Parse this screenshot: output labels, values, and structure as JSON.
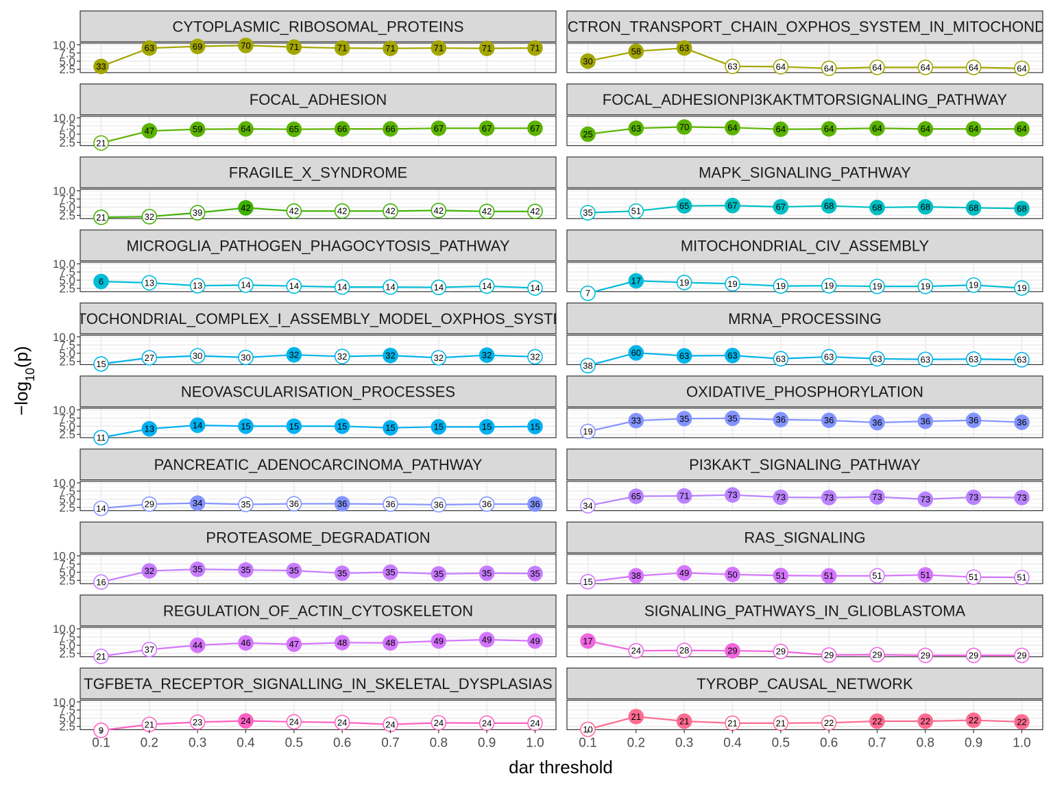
{
  "chart_data": {
    "type": "line",
    "xlabel": "dar threshold",
    "ylabel": "−log10(p)",
    "ylim": [
      1.5,
      10.5
    ],
    "yticks": [
      2.5,
      5.0,
      7.5,
      10.0
    ],
    "ytick_labels": [
      "2.5",
      "5.0",
      "7.5",
      "10.0"
    ],
    "x": [
      0.1,
      0.2,
      0.3,
      0.4,
      0.5,
      0.6,
      0.7,
      0.8,
      0.9,
      1.0
    ],
    "x_tick_labels": [
      "0.1",
      "0.2",
      "0.3",
      "0.4",
      "0.5",
      "0.6",
      "0.7",
      "0.8",
      "0.9",
      "1.0"
    ],
    "grid": true,
    "filled_meaning": "filled markers = significant; hollow = not significant",
    "panels": [
      {
        "title": "CYTOPLASMIC_RIBOSOMAL_PROTEINS",
        "color": "#A3A500",
        "y": [
          3.4,
          9.0,
          9.5,
          9.8,
          9.3,
          9.0,
          8.9,
          9.0,
          8.9,
          9.0
        ],
        "counts": [
          33,
          63,
          69,
          70,
          71,
          71,
          71,
          71,
          71,
          71
        ],
        "filled": [
          true,
          true,
          true,
          true,
          true,
          true,
          true,
          true,
          true,
          true
        ]
      },
      {
        "title": "ELECTRON_TRANSPORT_CHAIN_OXPHOS_SYSTEM_IN_MITOCHONDRIA",
        "color": "#A3A500",
        "y": [
          5.0,
          8.0,
          9.0,
          3.4,
          3.3,
          2.8,
          3.1,
          3.1,
          3.1,
          2.8
        ],
        "counts": [
          30,
          58,
          63,
          63,
          64,
          64,
          64,
          64,
          64,
          64
        ],
        "filled": [
          true,
          true,
          true,
          false,
          false,
          false,
          false,
          false,
          false,
          false
        ]
      },
      {
        "title": "FOCAL_ADHESION",
        "color": "#5BB300",
        "y": [
          2.3,
          6.0,
          6.5,
          6.6,
          6.5,
          6.6,
          6.6,
          6.8,
          6.8,
          6.8
        ],
        "counts": [
          21,
          47,
          59,
          64,
          65,
          66,
          66,
          67,
          67,
          67
        ],
        "filled": [
          false,
          true,
          true,
          true,
          true,
          true,
          true,
          true,
          true,
          true
        ]
      },
      {
        "title": "FOCAL_ADHESIONPI3KAKTMTORSIGNALING_PATHWAY",
        "color": "#5BB300",
        "y": [
          5.0,
          6.8,
          7.2,
          7.0,
          6.5,
          6.6,
          6.8,
          6.6,
          6.6,
          6.6
        ],
        "counts": [
          25,
          63,
          70,
          64,
          64,
          64,
          64,
          64,
          64,
          64
        ],
        "filled": [
          true,
          true,
          true,
          true,
          true,
          true,
          true,
          true,
          true,
          true
        ]
      },
      {
        "title": "FRAGILE_X_SYNDROME",
        "color": "#3DB000",
        "y": [
          1.9,
          2.1,
          3.3,
          4.8,
          3.8,
          3.8,
          3.8,
          4.0,
          3.7,
          3.7
        ],
        "counts": [
          21,
          32,
          39,
          42,
          42,
          42,
          42,
          42,
          42,
          42
        ],
        "filled": [
          false,
          false,
          false,
          true,
          false,
          false,
          false,
          false,
          false,
          false
        ]
      },
      {
        "title": "MAPK_SIGNALING_PATHWAY",
        "color": "#00BFC4",
        "y": [
          3.3,
          3.8,
          5.4,
          5.5,
          5.1,
          5.4,
          4.9,
          5.1,
          4.8,
          4.6
        ],
        "counts": [
          35,
          51,
          65,
          67,
          67,
          68,
          68,
          68,
          68,
          68
        ],
        "filled": [
          false,
          false,
          true,
          true,
          true,
          true,
          true,
          true,
          true,
          true
        ]
      },
      {
        "title": "MICROGLIA_PATHOGEN_PHAGOCYTOSIS_PATHWAY",
        "color": "#00BCD8",
        "y": [
          4.6,
          4.2,
          3.3,
          3.5,
          3.2,
          2.9,
          2.9,
          2.8,
          3.2,
          2.6
        ],
        "counts": [
          6,
          13,
          13,
          14,
          14,
          14,
          14,
          14,
          14,
          14
        ],
        "filled": [
          true,
          false,
          false,
          false,
          false,
          false,
          false,
          false,
          false,
          false
        ]
      },
      {
        "title": "MITOCHONDRIAL_CIV_ASSEMBLY",
        "color": "#00BCD8",
        "y": [
          1.0,
          4.8,
          4.3,
          3.9,
          3.2,
          3.3,
          3.1,
          3.1,
          3.5,
          2.6
        ],
        "counts": [
          7,
          17,
          19,
          19,
          19,
          19,
          19,
          19,
          19,
          19
        ],
        "filled": [
          false,
          true,
          false,
          false,
          false,
          false,
          false,
          false,
          false,
          false
        ]
      },
      {
        "title": "MITOCHONDRIAL_COMPLEX_I_ASSEMBLY_MODEL_OXPHOS_SYSTEM",
        "color": "#00B4E8",
        "y": [
          1.7,
          3.6,
          4.2,
          3.7,
          4.5,
          4.0,
          4.3,
          3.6,
          4.4,
          3.9
        ],
        "counts": [
          15,
          27,
          30,
          30,
          32,
          32,
          32,
          32,
          32,
          32
        ],
        "filled": [
          false,
          false,
          false,
          false,
          true,
          false,
          true,
          false,
          true,
          false
        ]
      },
      {
        "title": "MRNA_PROCESSING",
        "color": "#00B4E8",
        "y": [
          1.2,
          5.1,
          4.2,
          4.3,
          3.3,
          3.9,
          3.3,
          3.1,
          3.2,
          3.0
        ],
        "counts": [
          38,
          60,
          63,
          63,
          63,
          63,
          63,
          63,
          63,
          63
        ],
        "filled": [
          false,
          true,
          true,
          true,
          false,
          false,
          false,
          false,
          false,
          false
        ]
      },
      {
        "title": "NEOVASCULARISATION_PROCESSES",
        "color": "#00B0F0",
        "y": [
          1.5,
          4.2,
          5.3,
          5.0,
          5.0,
          5.0,
          4.5,
          4.8,
          4.8,
          4.9
        ],
        "counts": [
          11,
          13,
          14,
          15,
          15,
          15,
          15,
          15,
          15,
          15
        ],
        "filled": [
          false,
          true,
          true,
          true,
          true,
          true,
          true,
          true,
          true,
          true
        ]
      },
      {
        "title": "OXIDATIVE_PHOSPHORYLATION",
        "color": "#8494FF",
        "y": [
          3.4,
          6.7,
          7.3,
          7.4,
          7.0,
          6.8,
          6.1,
          6.5,
          6.8,
          6.2
        ],
        "counts": [
          19,
          33,
          35,
          35,
          36,
          36,
          36,
          36,
          36,
          36
        ],
        "filled": [
          false,
          true,
          true,
          true,
          true,
          true,
          true,
          true,
          true,
          true
        ]
      },
      {
        "title": "PANCREATIC_ADENOCARCINOMA_PATHWAY",
        "color": "#8494FF",
        "y": [
          2.2,
          3.5,
          3.8,
          3.4,
          3.6,
          3.6,
          3.5,
          3.3,
          3.5,
          3.5
        ],
        "counts": [
          14,
          29,
          34,
          35,
          36,
          36,
          36,
          36,
          36,
          36
        ],
        "filled": [
          false,
          false,
          true,
          false,
          false,
          true,
          false,
          false,
          false,
          true
        ]
      },
      {
        "title": "PI3KAKT_SIGNALING_PATHWAY",
        "color": "#B983FF",
        "y": [
          3.0,
          5.9,
          6.0,
          6.3,
          5.6,
          5.5,
          5.7,
          5.0,
          5.6,
          5.5
        ],
        "counts": [
          34,
          65,
          71,
          73,
          73,
          73,
          73,
          73,
          73,
          73
        ],
        "filled": [
          false,
          true,
          true,
          true,
          true,
          true,
          true,
          true,
          true,
          true
        ]
      },
      {
        "title": "PROTEASOME_DEGRADATION",
        "color": "#C77CFF",
        "y": [
          2.0,
          5.4,
          5.9,
          5.7,
          5.5,
          4.7,
          5.0,
          4.5,
          4.7,
          4.6
        ],
        "counts": [
          16,
          32,
          35,
          35,
          35,
          35,
          35,
          35,
          35,
          35
        ],
        "filled": [
          false,
          true,
          true,
          true,
          true,
          true,
          true,
          true,
          true,
          true
        ]
      },
      {
        "title": "RAS_SIGNALING",
        "color": "#D575FE",
        "y": [
          2.1,
          3.9,
          4.8,
          4.3,
          4.0,
          3.9,
          3.9,
          4.2,
          3.5,
          3.4
        ],
        "counts": [
          15,
          38,
          49,
          50,
          51,
          51,
          51,
          51,
          51,
          51
        ],
        "filled": [
          false,
          true,
          true,
          true,
          true,
          true,
          false,
          true,
          false,
          false
        ]
      },
      {
        "title": "REGULATION_OF_ACTIN_CYTOSKELETON",
        "color": "#D575FE",
        "y": [
          1.6,
          3.7,
          5.0,
          5.7,
          5.3,
          5.8,
          5.7,
          6.3,
          6.7,
          6.3
        ],
        "counts": [
          21,
          37,
          44,
          46,
          47,
          48,
          48,
          49,
          49,
          49
        ],
        "filled": [
          false,
          false,
          true,
          true,
          true,
          true,
          true,
          true,
          true,
          true
        ]
      },
      {
        "title": "SIGNALING_PATHWAYS_IN_GLIOBLASTOMA",
        "color": "#F066E0",
        "y": [
          6.3,
          3.3,
          3.4,
          3.3,
          3.1,
          2.0,
          2.1,
          1.9,
          1.9,
          1.9
        ],
        "counts": [
          17,
          24,
          28,
          29,
          29,
          29,
          29,
          29,
          29,
          29
        ],
        "filled": [
          true,
          false,
          false,
          true,
          false,
          false,
          false,
          false,
          false,
          false
        ]
      },
      {
        "title": "TGFBETA_RECEPTOR_SIGNALLING_IN_SKELETAL_DYSPLASIAS",
        "color": "#FF61C3",
        "y": [
          1.3,
          3.1,
          3.8,
          4.2,
          3.9,
          3.7,
          3.1,
          3.6,
          3.5,
          3.5
        ],
        "counts": [
          9,
          21,
          23,
          24,
          24,
          24,
          24,
          24,
          24,
          24
        ],
        "filled": [
          false,
          false,
          false,
          true,
          false,
          false,
          false,
          false,
          false,
          false
        ]
      },
      {
        "title": "TYROBP_CAUSAL_NETWORK",
        "color": "#FF6C91",
        "y": [
          1.6,
          5.5,
          4.1,
          3.5,
          3.5,
          3.6,
          4.1,
          4.1,
          4.4,
          3.9
        ],
        "counts": [
          10,
          21,
          21,
          21,
          21,
          22,
          22,
          22,
          22,
          22
        ],
        "filled": [
          false,
          true,
          true,
          false,
          false,
          false,
          true,
          true,
          true,
          true
        ]
      }
    ]
  }
}
